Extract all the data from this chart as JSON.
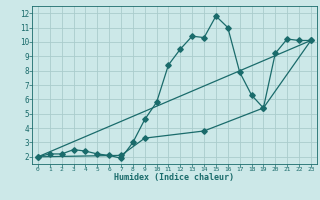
{
  "title": "",
  "xlabel": "Humidex (Indice chaleur)",
  "bg_color": "#cce8e8",
  "grid_color": "#aacccc",
  "line_color": "#1a6b6b",
  "xlim": [
    -0.5,
    23.5
  ],
  "ylim": [
    1.5,
    12.5
  ],
  "xticks": [
    0,
    1,
    2,
    3,
    4,
    5,
    6,
    7,
    8,
    9,
    10,
    11,
    12,
    13,
    14,
    15,
    16,
    17,
    18,
    19,
    20,
    21,
    22,
    23
  ],
  "yticks": [
    2,
    3,
    4,
    5,
    6,
    7,
    8,
    9,
    10,
    11,
    12
  ],
  "line1_x": [
    0,
    1,
    2,
    3,
    4,
    5,
    6,
    7,
    8,
    9,
    10,
    11,
    12,
    13,
    14,
    15,
    16,
    17,
    18,
    19,
    20,
    21,
    22,
    23
  ],
  "line1_y": [
    2.0,
    2.2,
    2.2,
    2.5,
    2.4,
    2.2,
    2.1,
    1.9,
    3.0,
    4.6,
    5.8,
    8.4,
    9.5,
    10.4,
    10.3,
    11.8,
    11.0,
    7.9,
    6.3,
    5.4,
    9.2,
    10.2,
    10.1,
    10.1
  ],
  "line2_x": [
    0,
    23
  ],
  "line2_y": [
    2.0,
    10.1
  ],
  "line3_x": [
    0,
    7,
    9,
    14,
    19,
    23
  ],
  "line3_y": [
    2.0,
    2.1,
    3.3,
    3.8,
    5.4,
    10.1
  ]
}
